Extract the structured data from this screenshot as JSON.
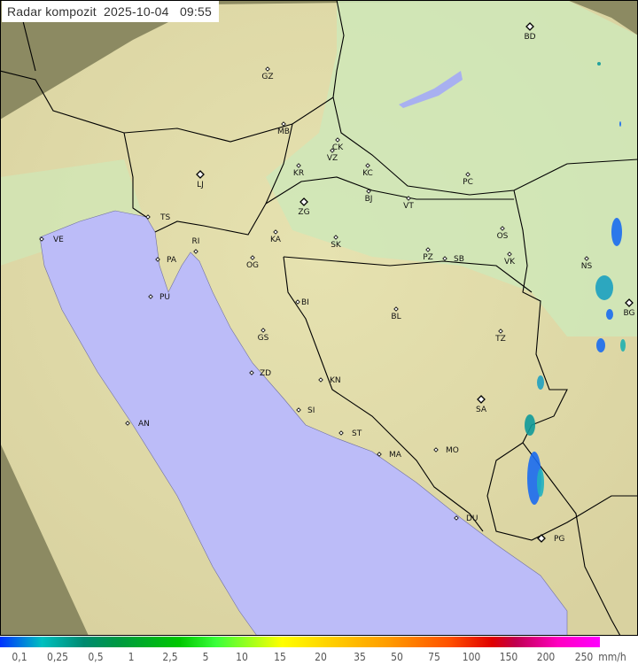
{
  "title": {
    "label": "Radar kompozit",
    "date": "2025-10-04",
    "time": "09:55"
  },
  "legend": {
    "unit": "mm/h",
    "ticks": [
      "0,1",
      "0,25",
      "0,5",
      "1",
      "2,5",
      "5",
      "10",
      "15",
      "20",
      "35",
      "50",
      "75",
      "100",
      "150",
      "200",
      "250"
    ]
  },
  "colors": {
    "sea": "#bcbcf8",
    "land": "#dfe4b0",
    "outside_coverage": "#8a8a60",
    "border": "#000000"
  },
  "cities": [
    {
      "code": "GZ"
    },
    {
      "code": "BD"
    },
    {
      "code": "MB"
    },
    {
      "code": "CK"
    },
    {
      "code": "VZ"
    },
    {
      "code": "KR"
    },
    {
      "code": "KC"
    },
    {
      "code": "LJ"
    },
    {
      "code": "ZG"
    },
    {
      "code": "BJ"
    },
    {
      "code": "VT"
    },
    {
      "code": "PC"
    },
    {
      "code": "TS"
    },
    {
      "code": "VE"
    },
    {
      "code": "RI"
    },
    {
      "code": "KA"
    },
    {
      "code": "SK"
    },
    {
      "code": "OS"
    },
    {
      "code": "PA"
    },
    {
      "code": "OG"
    },
    {
      "code": "PZ"
    },
    {
      "code": "SB"
    },
    {
      "code": "VK"
    },
    {
      "code": "NS"
    },
    {
      "code": "PU"
    },
    {
      "code": "BI"
    },
    {
      "code": "BL"
    },
    {
      "code": "BG"
    },
    {
      "code": "GS"
    },
    {
      "code": "TZ"
    },
    {
      "code": "ZD"
    },
    {
      "code": "KN"
    },
    {
      "code": "SA"
    },
    {
      "code": "SI"
    },
    {
      "code": "AN"
    },
    {
      "code": "ST"
    },
    {
      "code": "MA"
    },
    {
      "code": "MO"
    },
    {
      "code": "DU"
    },
    {
      "code": "PG"
    }
  ]
}
